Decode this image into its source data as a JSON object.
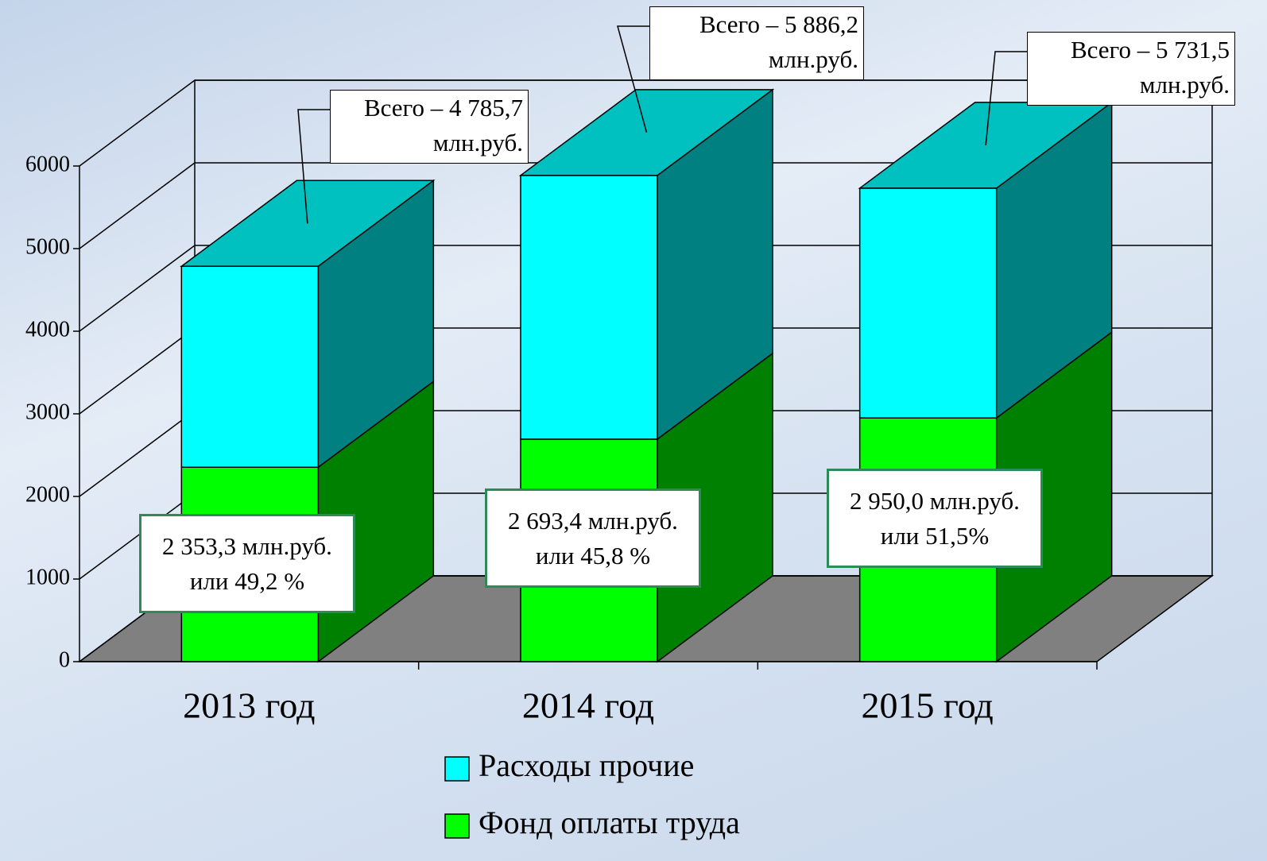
{
  "chart_data": {
    "type": "bar3d_stacked",
    "categories": [
      "2013 год",
      "2014 год",
      "2015 год"
    ],
    "series": [
      {
        "name": "Фонд оплаты труда",
        "color": "#00ff00",
        "side_color": "#008000",
        "values": [
          2353.3,
          2693.4,
          2950.0
        ],
        "value_labels": [
          "2 353,3 млн.руб. или 49,2 %",
          "2 693,4 млн.руб. или 45,8 %",
          "2 950,0 млн.руб. или 51,5%"
        ]
      },
      {
        "name": "Расходы прочие",
        "color": "#00ffff",
        "side_color": "#008080",
        "top_color": "#00c0c0",
        "values": [
          2432.4,
          3192.8,
          2781.5
        ]
      }
    ],
    "annotations": [
      "Всего –  4 785,7 млн.руб.",
      "Всего –  5 886,2 млн.руб.",
      "Всего – 5 731,5 млн.руб."
    ],
    "ylim": [
      0,
      6000
    ],
    "yticks": [
      0,
      1000,
      2000,
      3000,
      4000,
      5000,
      6000
    ],
    "grid": true
  }
}
